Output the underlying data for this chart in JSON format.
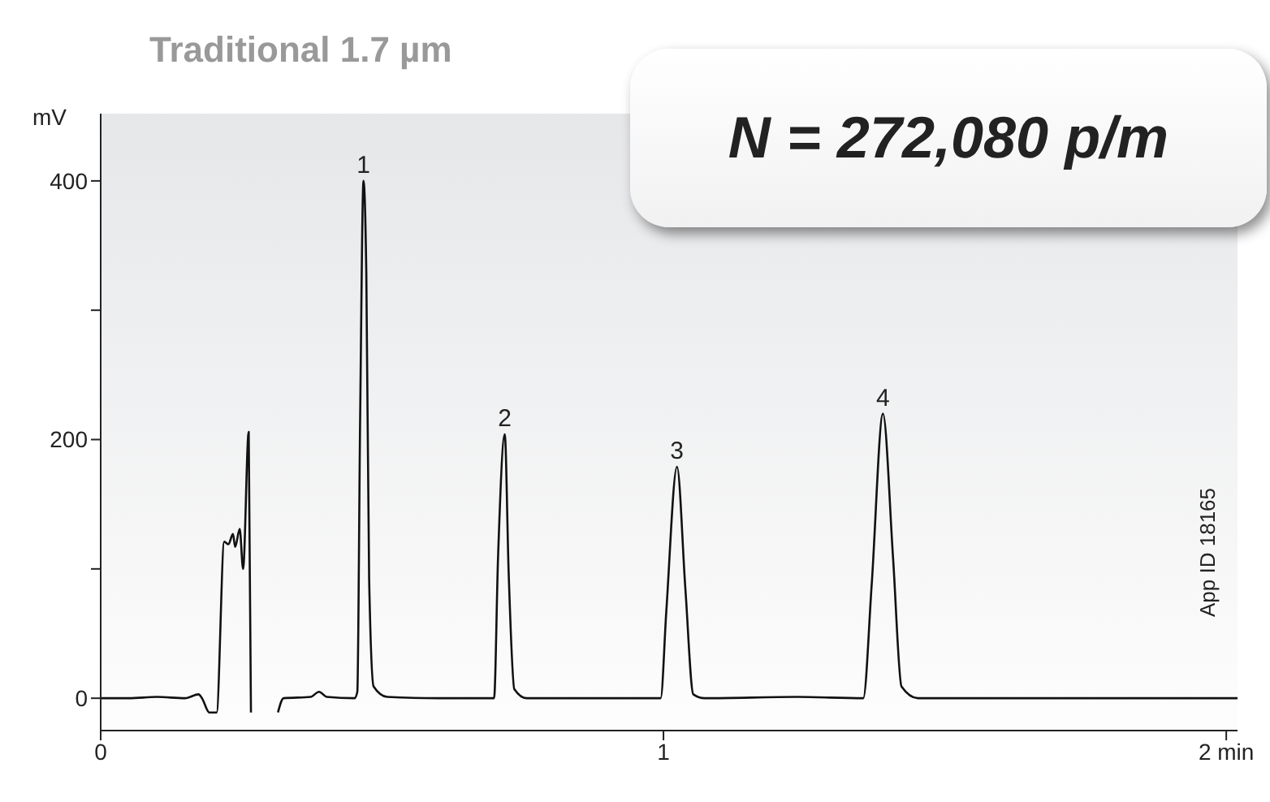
{
  "chart_data": {
    "type": "line",
    "title": "Traditional 1.7 µm",
    "ylabel": "mV",
    "x": [
      0,
      0.05,
      0.1,
      0.15,
      0.174,
      0.18,
      0.193,
      0.206,
      0.2195,
      0.227,
      0.235,
      0.239,
      0.247,
      0.253,
      0.263,
      0.267,
      0.29,
      0.315,
      0.325,
      0.373,
      0.388,
      0.402,
      0.451,
      0.456,
      0.461,
      0.467,
      0.472,
      0.477,
      0.485,
      0.509,
      0.6,
      0.699,
      0.706,
      0.718,
      0.725,
      0.735,
      0.757,
      0.85,
      0.995,
      1.005,
      1.024,
      1.039,
      1.053,
      1.073,
      1.238,
      1.355,
      1.37,
      1.39,
      1.408,
      1.423,
      1.452,
      1.6,
      1.8,
      2.02
    ],
    "series": [
      {
        "color": "#111111",
        "values": [
          0,
          0,
          1,
          0,
          3,
          0,
          -11,
          -11,
          121,
          119,
          127,
          117,
          131,
          100,
          206,
          -11,
          null,
          -11,
          0,
          1,
          5,
          1,
          0,
          5,
          216,
          400,
          328,
          92,
          9,
          1,
          0,
          0,
          108,
          204,
          96,
          7,
          0,
          0,
          0,
          67,
          179,
          84,
          3,
          0,
          1,
          0,
          88,
          220,
          108,
          9,
          0,
          0,
          0,
          0
        ]
      }
    ],
    "xlim": [
      0,
      2.02
    ],
    "xticks": [
      0,
      1,
      {
        "value": 2,
        "label": "2 min"
      }
    ],
    "ylim": [
      -25,
      452
    ],
    "yticks": [
      0,
      {
        "value": 100,
        "label": null
      },
      200,
      {
        "value": 300,
        "label": null
      },
      400
    ],
    "grid": false,
    "legend": false,
    "marker": "none",
    "line_style": "solid",
    "annotations": [
      {
        "text": "1",
        "x": 0.467,
        "y": 400
      },
      {
        "text": "2",
        "x": 0.718,
        "y": 204
      },
      {
        "text": "3",
        "x": 1.024,
        "y": 179
      },
      {
        "text": "4",
        "x": 1.39,
        "y": 220
      },
      "N = 272,080 p/m",
      "App ID 18165"
    ]
  }
}
